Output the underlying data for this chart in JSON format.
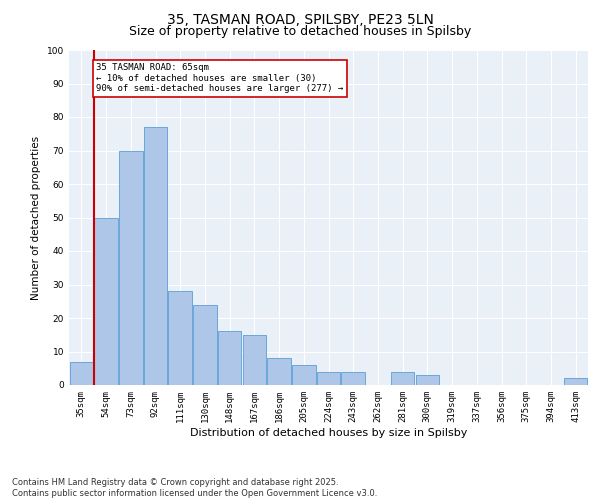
{
  "title1": "35, TASMAN ROAD, SPILSBY, PE23 5LN",
  "title2": "Size of property relative to detached houses in Spilsby",
  "xlabel": "Distribution of detached houses by size in Spilsby",
  "ylabel": "Number of detached properties",
  "categories": [
    "35sqm",
    "54sqm",
    "73sqm",
    "92sqm",
    "111sqm",
    "130sqm",
    "148sqm",
    "167sqm",
    "186sqm",
    "205sqm",
    "224sqm",
    "243sqm",
    "262sqm",
    "281sqm",
    "300sqm",
    "319sqm",
    "337sqm",
    "356sqm",
    "375sqm",
    "394sqm",
    "413sqm"
  ],
  "values": [
    7,
    50,
    70,
    77,
    28,
    24,
    16,
    15,
    8,
    6,
    4,
    4,
    0,
    4,
    3,
    0,
    0,
    0,
    0,
    0,
    2
  ],
  "bar_color": "#aec6e8",
  "bar_edge_color": "#5a9fd4",
  "vline_color": "#cc0000",
  "annotation_text": "35 TASMAN ROAD: 65sqm\n← 10% of detached houses are smaller (30)\n90% of semi-detached houses are larger (277) →",
  "annotation_box_color": "#cc0000",
  "ylim": [
    0,
    100
  ],
  "yticks": [
    0,
    10,
    20,
    30,
    40,
    50,
    60,
    70,
    80,
    90,
    100
  ],
  "background_color": "#eaf0f8",
  "footer": "Contains HM Land Registry data © Crown copyright and database right 2025.\nContains public sector information licensed under the Open Government Licence v3.0.",
  "title1_fontsize": 10,
  "title2_fontsize": 9,
  "xlabel_fontsize": 8,
  "ylabel_fontsize": 7.5,
  "tick_fontsize": 6.5,
  "footer_fontsize": 6,
  "annot_fontsize": 6.5
}
